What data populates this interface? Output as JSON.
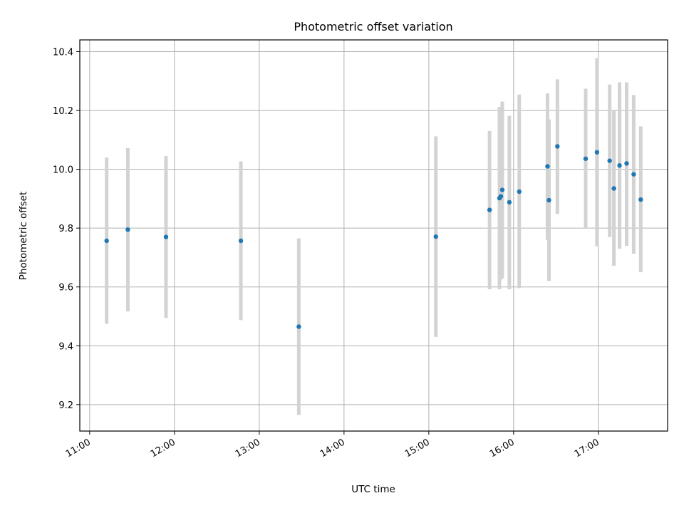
{
  "chart_data": {
    "type": "scatter",
    "title": "Photometric offset variation",
    "xlabel": "UTC time",
    "ylabel": "Photometric offset",
    "x_axis_type": "time",
    "xlim": [
      "10:53",
      "17:49"
    ],
    "ylim": [
      9.11,
      10.44
    ],
    "xticks": [
      "11:00",
      "12:00",
      "13:00",
      "14:00",
      "15:00",
      "16:00",
      "17:00"
    ],
    "yticks": [
      9.2,
      9.4,
      9.6,
      9.8,
      10.0,
      10.2,
      10.4
    ],
    "grid": true,
    "legend": "none",
    "colors": {
      "points": "#1f77b4",
      "errorbars": "#d3d3d3"
    },
    "points": [
      {
        "x": "11:12",
        "y": 9.757,
        "ylow": 9.475,
        "yhigh": 10.04
      },
      {
        "x": "11:27",
        "y": 9.795,
        "ylow": 9.517,
        "yhigh": 10.072
      },
      {
        "x": "11:54",
        "y": 9.77,
        "ylow": 9.495,
        "yhigh": 10.045
      },
      {
        "x": "12:47",
        "y": 9.757,
        "ylow": 9.487,
        "yhigh": 10.027
      },
      {
        "x": "13:28",
        "y": 9.465,
        "ylow": 9.165,
        "yhigh": 9.765
      },
      {
        "x": "15:05",
        "y": 9.771,
        "ylow": 9.43,
        "yhigh": 10.112
      },
      {
        "x": "15:43",
        "y": 9.862,
        "ylow": 9.592,
        "yhigh": 10.13
      },
      {
        "x": "15:50",
        "y": 9.902,
        "ylow": 9.592,
        "yhigh": 10.212
      },
      {
        "x": "15:51",
        "y": 9.908,
        "ylow": 9.625,
        "yhigh": 10.192
      },
      {
        "x": "15:52",
        "y": 9.93,
        "ylow": 9.63,
        "yhigh": 10.23
      },
      {
        "x": "15:57",
        "y": 9.888,
        "ylow": 9.592,
        "yhigh": 10.182
      },
      {
        "x": "16:04",
        "y": 9.924,
        "ylow": 9.596,
        "yhigh": 10.254
      },
      {
        "x": "16:24",
        "y": 10.01,
        "ylow": 9.76,
        "yhigh": 10.258
      },
      {
        "x": "16:25",
        "y": 9.895,
        "ylow": 9.62,
        "yhigh": 10.17
      },
      {
        "x": "16:31",
        "y": 10.078,
        "ylow": 9.848,
        "yhigh": 10.306
      },
      {
        "x": "16:51",
        "y": 10.036,
        "ylow": 9.798,
        "yhigh": 10.274
      },
      {
        "x": "16:59",
        "y": 10.058,
        "ylow": 9.738,
        "yhigh": 10.378
      },
      {
        "x": "17:08",
        "y": 10.029,
        "ylow": 9.77,
        "yhigh": 10.288
      },
      {
        "x": "17:11",
        "y": 9.935,
        "ylow": 9.672,
        "yhigh": 10.198
      },
      {
        "x": "17:15",
        "y": 10.013,
        "ylow": 9.73,
        "yhigh": 10.296
      },
      {
        "x": "17:20",
        "y": 10.02,
        "ylow": 9.74,
        "yhigh": 10.296
      },
      {
        "x": "17:25",
        "y": 9.983,
        "ylow": 9.713,
        "yhigh": 10.253
      },
      {
        "x": "17:30",
        "y": 9.897,
        "ylow": 9.65,
        "yhigh": 10.146
      }
    ]
  }
}
